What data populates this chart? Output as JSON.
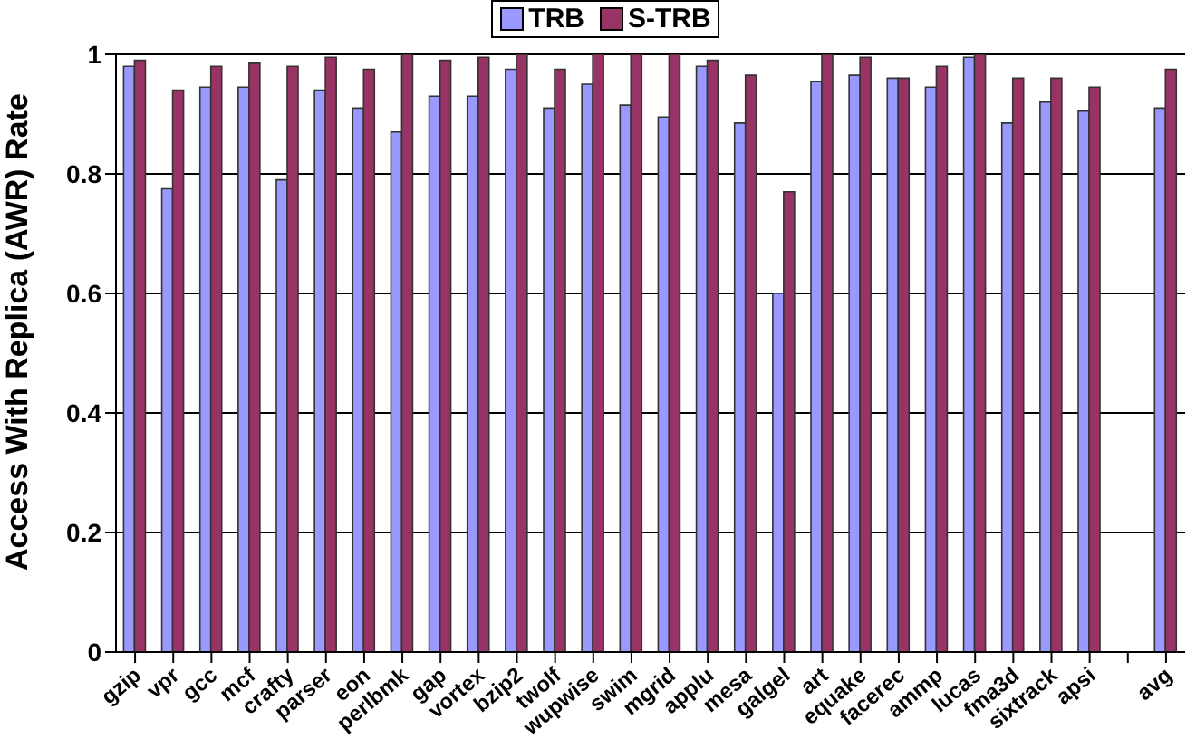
{
  "chart_data": {
    "type": "bar",
    "ylabel": "Access With Replica (AWR) Rate",
    "categories": [
      "gzip",
      "vpr",
      "gcc",
      "mcf",
      "crafty",
      "parser",
      "eon",
      "perlbmk",
      "gap",
      "vortex",
      "bzip2",
      "twolf",
      "wupwise",
      "swim",
      "mgrid",
      "applu",
      "mesa",
      "galgel",
      "art",
      "equake",
      "facerec",
      "ammp",
      "lucas",
      "fma3d",
      "sixtrack",
      "apsi",
      null,
      "avg"
    ],
    "series": [
      {
        "name": "TRB",
        "color": "#9999ff",
        "values": [
          0.98,
          0.775,
          0.945,
          0.945,
          0.79,
          0.94,
          0.91,
          0.87,
          0.93,
          0.93,
          0.975,
          0.91,
          0.95,
          0.915,
          0.895,
          0.98,
          0.885,
          0.6,
          0.955,
          0.965,
          0.96,
          0.945,
          0.995,
          0.885,
          0.92,
          0.905,
          null,
          0.91
        ]
      },
      {
        "name": "S-TRB",
        "color": "#993366",
        "values": [
          0.99,
          0.94,
          0.98,
          0.985,
          0.98,
          0.995,
          0.975,
          1.0,
          0.99,
          0.995,
          1.0,
          0.975,
          1.0,
          1.0,
          1.0,
          0.99,
          0.965,
          0.77,
          1.0,
          0.995,
          0.96,
          0.98,
          1.0,
          0.96,
          0.96,
          0.945,
          null,
          0.975
        ]
      }
    ],
    "ylim": [
      0,
      1
    ],
    "yticks": [
      0,
      0.2,
      0.4,
      0.6,
      0.8,
      1
    ],
    "grid": "y",
    "legend": "top"
  }
}
